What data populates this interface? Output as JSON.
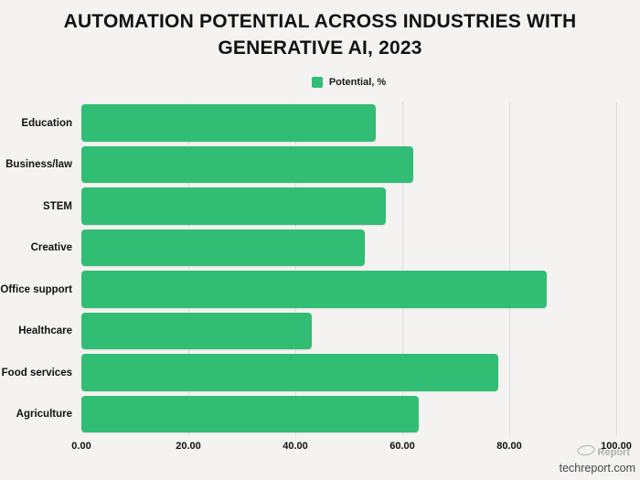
{
  "title": "AUTOMATION POTENTIAL ACROSS INDUSTRIES WITH GENERATIVE AI, 2023",
  "legend": {
    "label": "Potential, %",
    "color": "#32bd74"
  },
  "chart_data": {
    "type": "bar",
    "orientation": "horizontal",
    "title": "AUTOMATION POTENTIAL ACROSS INDUSTRIES WITH GENERATIVE AI, 2023",
    "series_name": "Potential, %",
    "categories": [
      "Education",
      "Business/law",
      "STEM",
      "Creative",
      "Office support",
      "Healthcare",
      "Food services",
      "Agriculture"
    ],
    "values": [
      55,
      62,
      57,
      53,
      87,
      43,
      78,
      63
    ],
    "xlabel": "",
    "ylabel": "",
    "xlim": [
      0,
      100
    ],
    "x_ticks": [
      "0.00",
      "20.00",
      "40.00",
      "60.00",
      "80.00",
      "100.00"
    ],
    "grid": true,
    "legend_position": "top-center",
    "bar_color": "#32bd74",
    "background_color": "#f4f3f1",
    "gridline_color": "#dcdcda"
  },
  "watermark": {
    "logo_text": "Report",
    "site": "techreport.com"
  }
}
